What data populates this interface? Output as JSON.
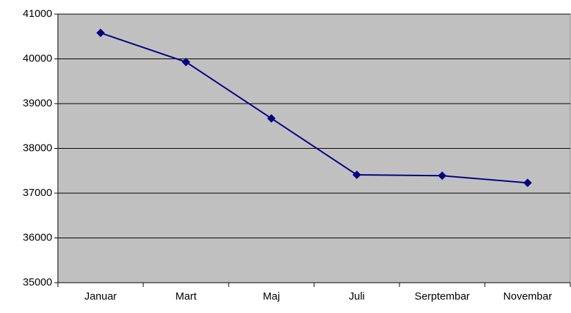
{
  "chart_data": {
    "type": "line",
    "categories": [
      "Januar",
      "Mart",
      "Maj",
      "Juli",
      "Serptembar",
      "Novembar"
    ],
    "series": [
      {
        "name": null,
        "color": "#000080",
        "values": [
          40580,
          39930,
          38670,
          37410,
          37390,
          37230
        ]
      }
    ],
    "ylim": [
      35000,
      41000
    ],
    "yticks": [
      35000,
      36000,
      37000,
      38000,
      39000,
      40000,
      41000
    ],
    "grid": true,
    "plot_background": "#c0c0c0"
  }
}
